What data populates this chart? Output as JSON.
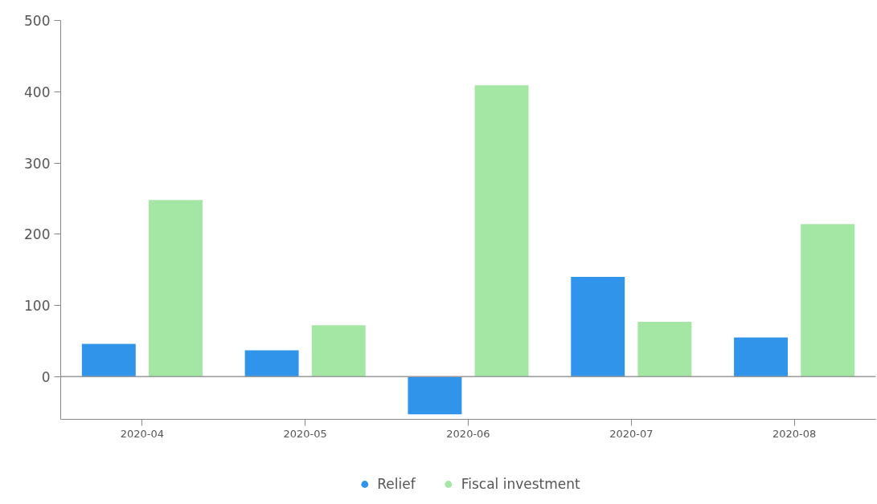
{
  "chart_data": {
    "type": "bar",
    "categories": [
      "2020-04",
      "2020-05",
      "2020-06",
      "2020-07",
      "2020-08"
    ],
    "series": [
      {
        "name": "Relief",
        "color": "#3094ea",
        "values": [
          46,
          37,
          -53,
          140,
          55
        ]
      },
      {
        "name": "Fiscal investment",
        "color": "#a4e6a4",
        "values": [
          248,
          72,
          409,
          77,
          214
        ]
      }
    ],
    "ylim": [
      -60,
      500
    ],
    "yticks": [
      0,
      100,
      200,
      300,
      400,
      500
    ],
    "grid": false,
    "legend": "bottom",
    "marker": "circle",
    "ref_lines": [
      {
        "axis": "y",
        "value": 0,
        "color": "#999999"
      }
    ]
  }
}
